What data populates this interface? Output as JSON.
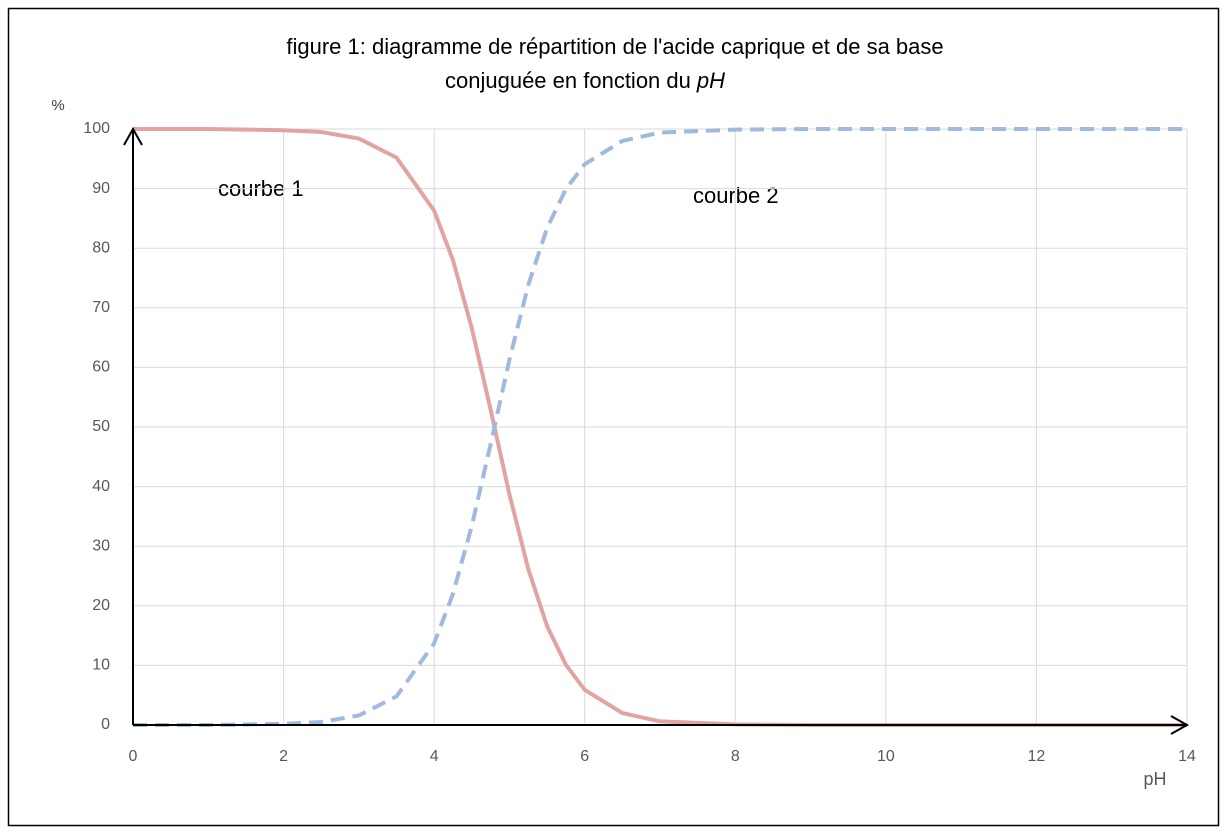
{
  "chart_data": {
    "type": "line",
    "title": [
      "figure 1: diagramme de répartition de l'acide caprique et de sa base",
      "conjuguée en fonction du"
    ],
    "title_italic": "pH",
    "x_label": "pH",
    "y_label": "%",
    "annotations": [
      "courbe 1",
      "courbe 2"
    ],
    "x": [
      0,
      1,
      2,
      2.5,
      3,
      3.5,
      4,
      4.25,
      4.5,
      4.75,
      5,
      5.25,
      5.5,
      5.75,
      6,
      6.5,
      7,
      8,
      9,
      10,
      11,
      12,
      13,
      14
    ],
    "series": [
      {
        "name": "courbe 1",
        "color": "#e3a3a3",
        "dashed": false,
        "values": [
          100,
          100,
          99.8,
          99.5,
          98.4,
          95.2,
          86.3,
          78.0,
          66.6,
          52.9,
          38.7,
          26.2,
          16.6,
          10.1,
          5.9,
          2.0,
          0.6,
          0.1,
          0,
          0,
          0,
          0,
          0,
          0
        ]
      },
      {
        "name": "courbe 2",
        "color": "#9fbade",
        "dashed": true,
        "values": [
          0,
          0,
          0.2,
          0.5,
          1.6,
          4.8,
          13.7,
          22.0,
          33.4,
          47.1,
          61.3,
          73.8,
          83.4,
          89.9,
          94.1,
          98.0,
          99.4,
          99.9,
          100,
          100,
          100,
          100,
          100,
          100
        ]
      }
    ],
    "xlim": [
      0,
      14
    ],
    "xticks": [
      0,
      2,
      4,
      6,
      8,
      10,
      12,
      14
    ],
    "ylim": [
      0,
      100
    ],
    "yticks": [
      0,
      10,
      20,
      30,
      40,
      50,
      60,
      70,
      80,
      90,
      100
    ],
    "grid": true
  }
}
